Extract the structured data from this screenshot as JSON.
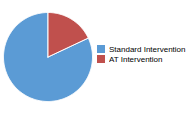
{
  "chart_data": {
    "type": "pie",
    "categories": [
      "Standard Intervention",
      "AT Intervention"
    ],
    "values": [
      82,
      18
    ],
    "colors": [
      "#5B9BD5",
      "#C0504D"
    ],
    "legend": "right"
  }
}
